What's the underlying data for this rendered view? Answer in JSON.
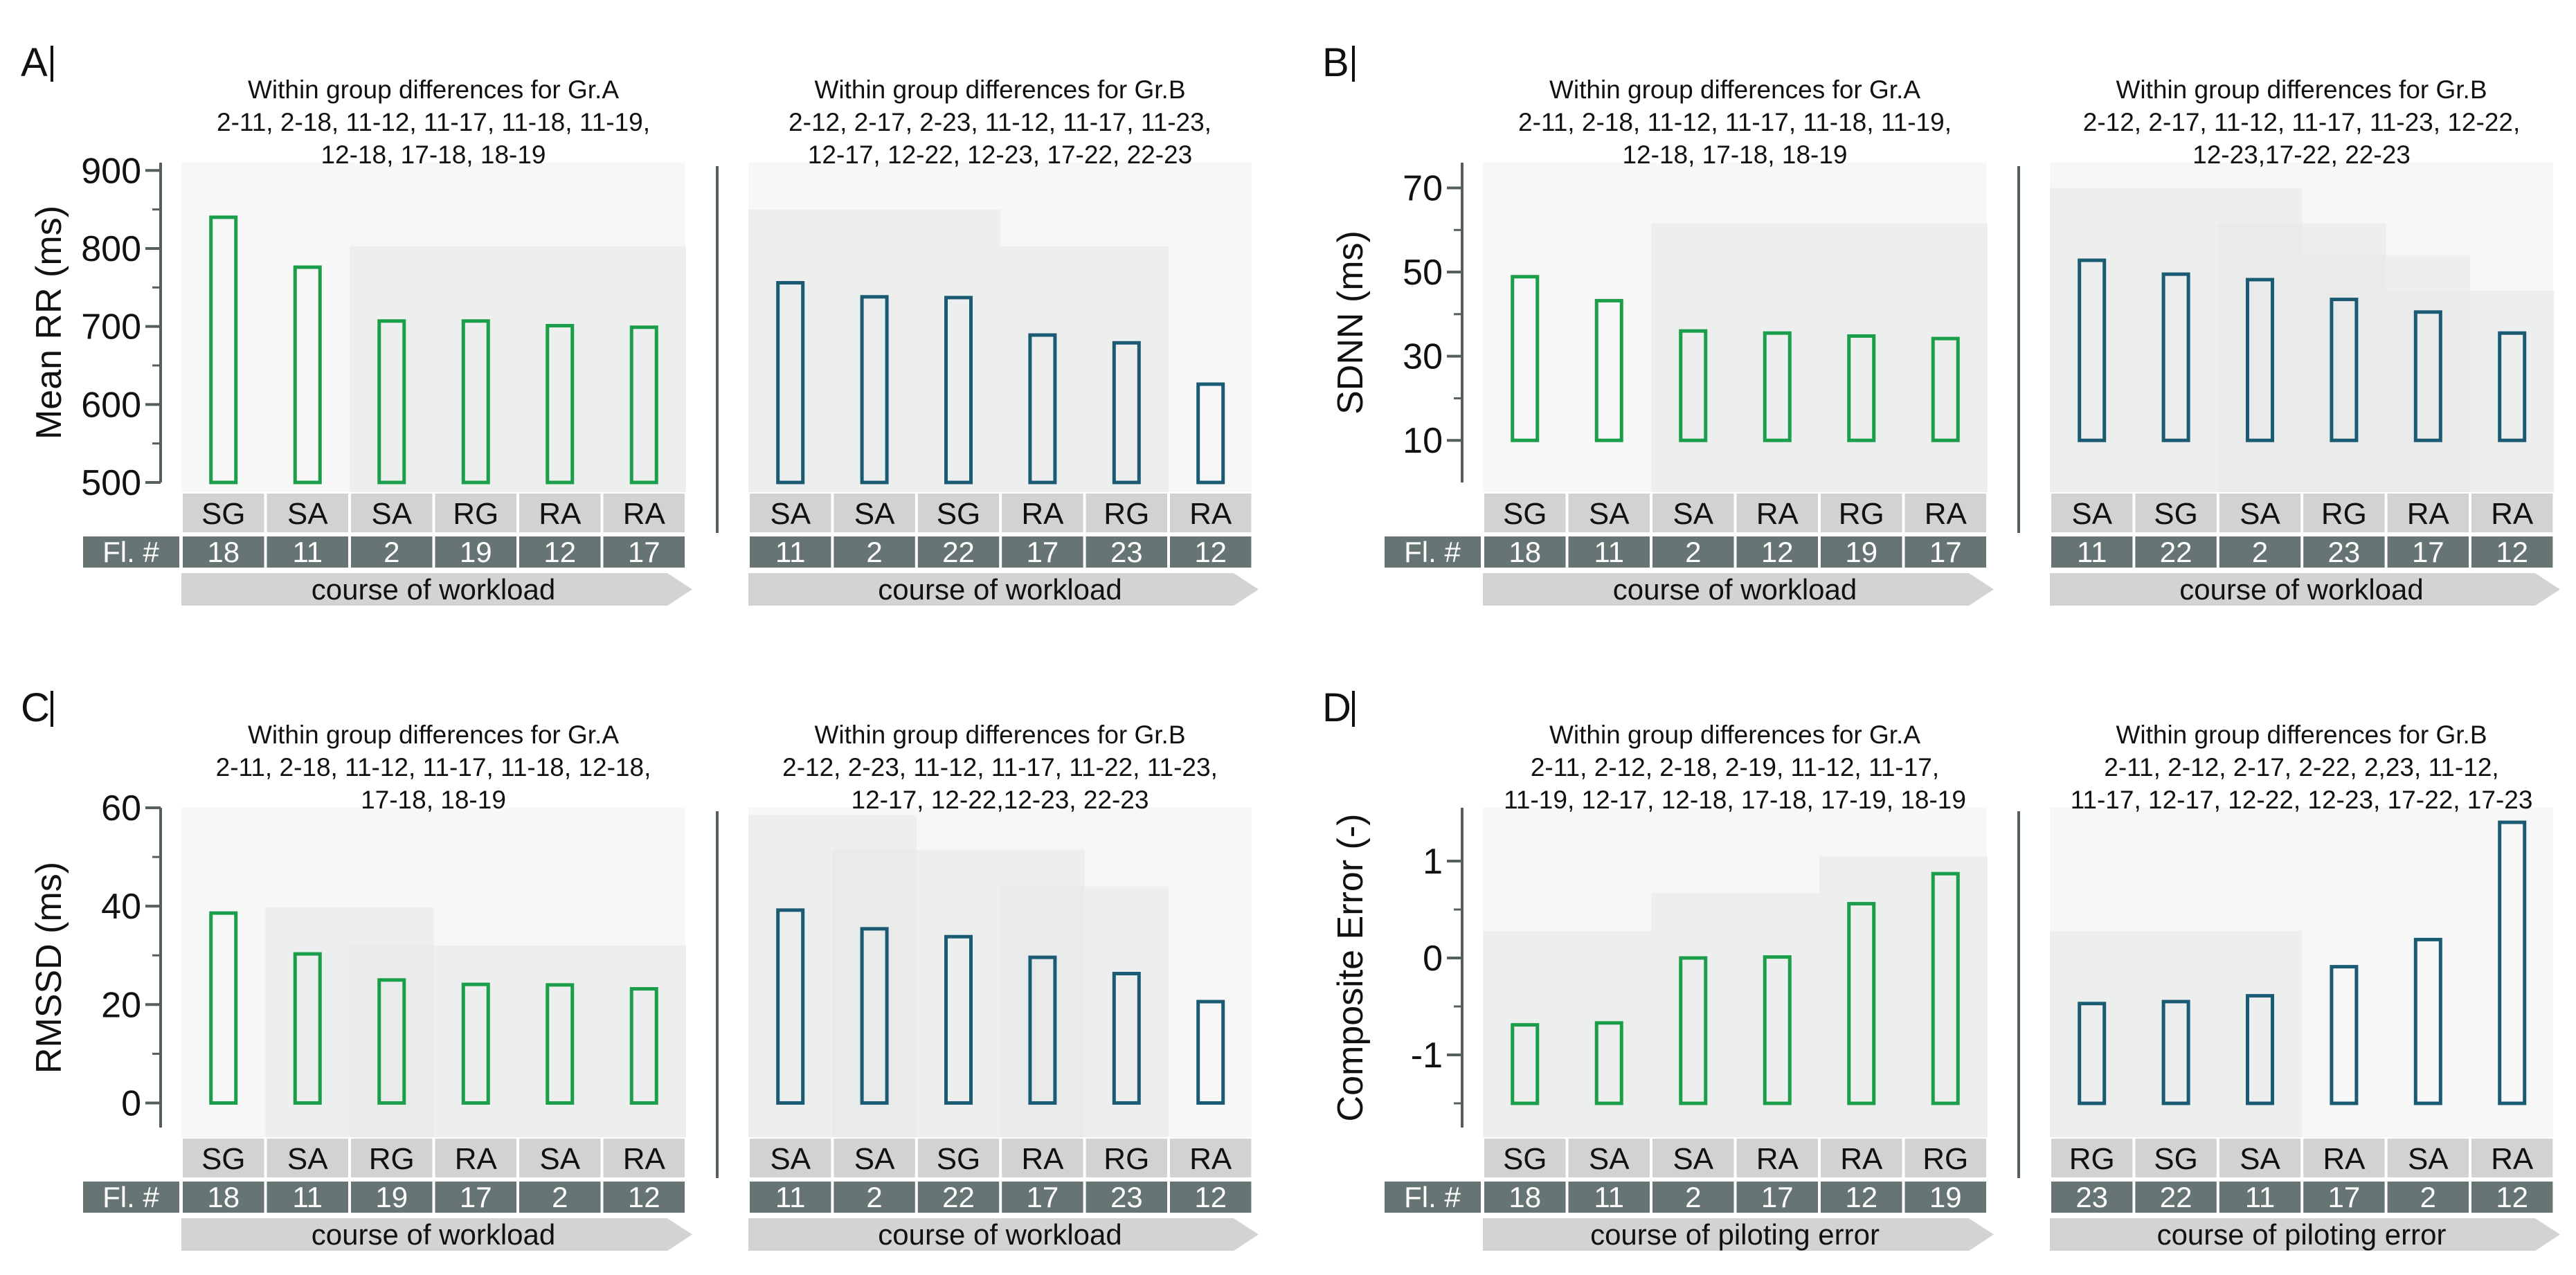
{
  "colors": {
    "group_a": "#1a9e4a",
    "group_b": "#1b5a73",
    "shade": "#e7e9e8",
    "shade_opacity": "0.62",
    "cond_box": "#d2d2d2",
    "fl_bar": "#667573",
    "arrow": "#d3d3d3",
    "axis": "#555f5e",
    "text": "#111111"
  },
  "fl_label": "Fl. #",
  "chart_data": [
    {
      "type": "bar",
      "panel_letter": "A",
      "ylabel": "Mean RR (ms)",
      "ylim": [
        500,
        910
      ],
      "yticks": [
        500,
        600,
        700,
        800,
        900
      ],
      "yminor": [
        550,
        650,
        750,
        850
      ],
      "baseline": 500,
      "groups": [
        {
          "name": "Gr.A",
          "title": [
            "Within group differences for Gr.A",
            "2-11, 2-18, 11-12, 11-17, 11-18, 11-19,",
            "12-18, 17-18, 18-19"
          ],
          "conditions": [
            "SG",
            "SA",
            "SA",
            "RG",
            "RA",
            "RA"
          ],
          "flights": [
            "18",
            "11",
            "2",
            "19",
            "12",
            "17"
          ],
          "values": [
            840,
            776,
            707,
            707,
            701,
            699
          ],
          "shades": [
            {
              "from": 2,
              "to": 5,
              "top": 803
            }
          ],
          "arrow_label": "course of workload"
        },
        {
          "name": "Gr.B",
          "title": [
            "Within group differences for Gr.B",
            "2-12, 2-17, 2-23, 11-12, 11-17, 11-23,",
            "12-17, 12-22, 12-23, 17-22, 22-23"
          ],
          "conditions": [
            "SA",
            "SA",
            "SG",
            "RA",
            "RG",
            "RA"
          ],
          "flights": [
            "11",
            "2",
            "22",
            "17",
            "23",
            "12"
          ],
          "values": [
            756,
            738,
            737,
            689,
            679,
            626
          ],
          "shades": [
            {
              "from": 0,
              "to": 2,
              "top": 850
            },
            {
              "from": 3,
              "to": 4,
              "top": 803
            }
          ],
          "arrow_label": "course of workload"
        }
      ]
    },
    {
      "type": "bar",
      "panel_letter": "B",
      "ylabel": "SDNN (ms)",
      "ylim": [
        0,
        76
      ],
      "yticks": [
        10,
        30,
        50,
        70
      ],
      "yminor": [
        20,
        40,
        60
      ],
      "baseline": 10,
      "groups": [
        {
          "name": "Gr.A",
          "title": [
            "Within group differences for Gr.A",
            "2-11, 2-18, 11-12, 11-17, 11-18, 11-19,",
            "12-18, 17-18, 18-19"
          ],
          "conditions": [
            "SG",
            "SA",
            "SA",
            "RA",
            "RG",
            "RA"
          ],
          "flights": [
            "18",
            "11",
            "2",
            "12",
            "19",
            "17"
          ],
          "values": [
            48.9,
            43.2,
            36.0,
            35.5,
            34.8,
            34.2
          ],
          "shades": [
            {
              "from": 2,
              "to": 5,
              "top": 61.5
            }
          ],
          "arrow_label": "course of workload"
        },
        {
          "name": "Gr.B",
          "title": [
            "Within group differences for Gr.B",
            "2-12, 2-17, 11-12, 11-17, 11-23, 12-22,",
            "12-23,17-22, 22-23"
          ],
          "conditions": [
            "SA",
            "SG",
            "SA",
            "RG",
            "RA",
            "RA"
          ],
          "flights": [
            "11",
            "22",
            "2",
            "23",
            "17",
            "12"
          ],
          "values": [
            52.8,
            49.5,
            48.2,
            43.5,
            40.5,
            35.5
          ],
          "shades": [
            {
              "from": 0,
              "to": 2,
              "top": 70
            },
            {
              "from": 2,
              "to": 3,
              "top": 61.5
            },
            {
              "from": 3,
              "to": 4,
              "top": 54
            },
            {
              "from": 4,
              "to": 5,
              "top": 45.5
            }
          ],
          "arrow_label": "course of workload"
        }
      ]
    },
    {
      "type": "bar",
      "panel_letter": "C",
      "ylabel": "RMSSD (ms)",
      "ylim": [
        -5,
        60
      ],
      "yticks": [
        0,
        20,
        40,
        60
      ],
      "yminor": [
        10,
        30,
        50
      ],
      "baseline": 0,
      "groups": [
        {
          "name": "Gr.A",
          "title": [
            "Within group differences for Gr.A",
            "2-11, 2-18, 11-12, 11-17, 11-18, 12-18,",
            "17-18, 18-19"
          ],
          "conditions": [
            "SG",
            "SA",
            "RG",
            "RA",
            "SA",
            "RA"
          ],
          "flights": [
            "18",
            "11",
            "19",
            "17",
            "2",
            "12"
          ],
          "values": [
            38.6,
            30.3,
            25.0,
            24.1,
            24.0,
            23.2
          ],
          "shades": [
            {
              "from": 1,
              "to": 2,
              "top": 39.7
            },
            {
              "from": 2,
              "to": 5,
              "top": 32
            }
          ],
          "arrow_label": "course of workload"
        },
        {
          "name": "Gr.B",
          "title": [
            "Within group differences for Gr.B",
            "2-12, 2-23, 11-12, 11-17, 11-22, 11-23,",
            "12-17, 12-22,12-23, 22-23"
          ],
          "conditions": [
            "SA",
            "SA",
            "SG",
            "RA",
            "RG",
            "RA"
          ],
          "flights": [
            "11",
            "2",
            "22",
            "17",
            "23",
            "12"
          ],
          "values": [
            39.2,
            35.4,
            33.8,
            29.6,
            26.3,
            20.6
          ],
          "shades": [
            {
              "from": 0,
              "to": 1,
              "top": 58.5
            },
            {
              "from": 1,
              "to": 3,
              "top": 51.5
            },
            {
              "from": 3,
              "to": 4,
              "top": 44
            }
          ],
          "arrow_label": "course of workload"
        }
      ]
    },
    {
      "type": "bar",
      "panel_letter": "D",
      "ylabel": "Composite Error (-)",
      "ylim": [
        -1.75,
        1.55
      ],
      "yticks": [
        -1,
        0,
        1
      ],
      "yminor": [
        -1.5,
        -0.5,
        0.5
      ],
      "baseline": -1.5,
      "groups": [
        {
          "name": "Gr.A",
          "title": [
            "Within group differences for Gr.A",
            "2-11, 2-12, 2-18, 2-19, 11-12, 11-17,",
            "11-19, 12-17, 12-18, 17-18, 17-19, 18-19"
          ],
          "conditions": [
            "SG",
            "SA",
            "SA",
            "RA",
            "RA",
            "RG"
          ],
          "flights": [
            "18",
            "11",
            "2",
            "17",
            "12",
            "19"
          ],
          "values": [
            -0.69,
            -0.67,
            0.0,
            0.01,
            0.56,
            0.87
          ],
          "shades": [
            {
              "from": 0,
              "to": 1,
              "top": 0.28
            },
            {
              "from": 2,
              "to": 3,
              "top": 0.67
            },
            {
              "from": 4,
              "to": 5,
              "top": 1.05
            }
          ],
          "arrow_label": "course of piloting error"
        },
        {
          "name": "Gr.B",
          "title": [
            "Within group differences for Gr.B",
            "2-11, 2-12, 2-17, 2-22, 2,23, 11-12,",
            "11-17, 12-17, 12-22, 12-23, 17-22, 17-23"
          ],
          "conditions": [
            "RG",
            "SG",
            "SA",
            "RA",
            "SA",
            "RA"
          ],
          "flights": [
            "23",
            "22",
            "11",
            "17",
            "2",
            "12"
          ],
          "values": [
            -0.47,
            -0.45,
            -0.39,
            -0.09,
            0.19,
            1.4
          ],
          "shades": [
            {
              "from": 0,
              "to": 2,
              "top": 0.28
            }
          ],
          "arrow_label": "course of piloting error"
        }
      ]
    }
  ]
}
